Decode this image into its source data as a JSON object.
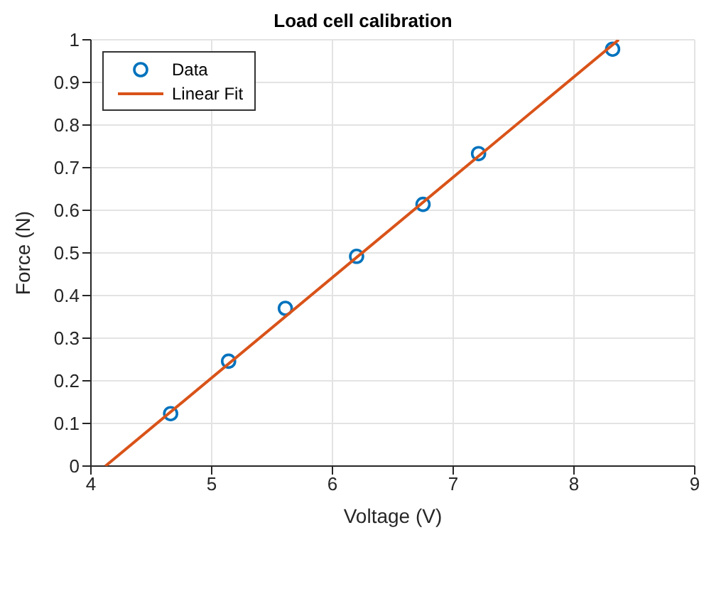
{
  "chart_data": {
    "type": "scatter",
    "title": "Load cell calibration",
    "xlabel": "Voltage (V)",
    "ylabel": "Force (N)",
    "xlim": [
      4,
      9
    ],
    "xticks": [
      4,
      5,
      6,
      7,
      8,
      9
    ],
    "ylim": [
      0,
      1
    ],
    "yticks": [
      0,
      0.1,
      0.2,
      0.3,
      0.4,
      0.5,
      0.6,
      0.7,
      0.8,
      0.9,
      1
    ],
    "grid": true,
    "legend": "top left",
    "series": [
      {
        "name": "Data",
        "type": "scatter",
        "marker": "circle",
        "color": "#0072bd",
        "x": [
          4.66,
          5.14,
          5.61,
          6.2,
          6.75,
          7.21,
          8.32
        ],
        "values": [
          0.123,
          0.246,
          0.37,
          0.492,
          0.614,
          0.733,
          0.978
        ]
      },
      {
        "name": "Linear Fit",
        "type": "line",
        "marker": "none",
        "line_style": "solid",
        "color": "#d95319",
        "x": [
          4.12,
          8.37
        ],
        "values": [
          0,
          1
        ]
      }
    ]
  }
}
